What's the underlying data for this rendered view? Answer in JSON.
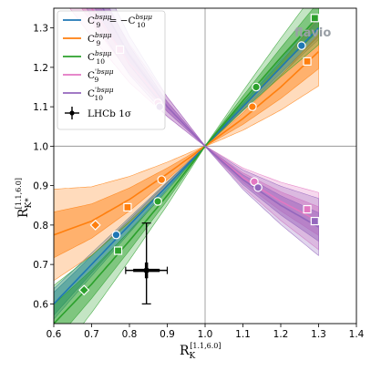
{
  "chart_data": {
    "type": "line",
    "xlabel": "R_K^{[1.1,6.0]}",
    "ylabel": "R_K*^{[1.1,6.0]}",
    "xlim": [
      0.6,
      1.4
    ],
    "ylim": [
      0.55,
      1.35
    ],
    "xticks": [
      "0.6",
      "0.7",
      "0.8",
      "0.9",
      "1.0",
      "1.1",
      "1.2",
      "1.3",
      "1.4"
    ],
    "yticks": [
      "0.6",
      "0.7",
      "0.8",
      "0.9",
      "1.0",
      "1.1",
      "1.2",
      "1.3"
    ],
    "xtick_values": [
      0.6,
      0.7,
      0.8,
      0.9,
      1.0,
      1.1,
      1.2,
      1.3,
      1.4
    ],
    "ytick_values": [
      0.6,
      0.7,
      0.8,
      0.9,
      1.0,
      1.1,
      1.2,
      1.3
    ],
    "reference_lines": {
      "x": 1.0,
      "y": 1.0
    },
    "brand_label": "flavio",
    "legend_position": "top-left",
    "series": [
      {
        "name": "C9^{bsμμ} = −C10^{bsμμ}",
        "name_main": "C",
        "name_sup": "bsμμ",
        "name_sub": "9",
        "name_mid": " = −C",
        "name_sup2": "bsμμ",
        "name_sub2": "10",
        "color": "#1f77b4",
        "band_color": "#1f77b4",
        "x": [
          0.6,
          0.7,
          0.8,
          0.9,
          1.0,
          1.1,
          1.2,
          1.3
        ],
        "y": [
          0.6,
          0.7,
          0.8,
          0.9,
          1.0,
          1.1,
          1.2,
          1.3
        ],
        "band_widths": [
          0.02,
          0.015
        ],
        "markers": [
          {
            "shape": "circle",
            "x": 0.765,
            "y": 0.775
          },
          {
            "shape": "circle",
            "x": 1.255,
            "y": 1.255
          }
        ]
      },
      {
        "name": "C9^{bsμμ}",
        "name_main": "C",
        "name_sup": "bsμμ",
        "name_sub": "9",
        "color": "#ff7f0e",
        "band_color": "#ff7f0e",
        "x": [
          0.6,
          0.7,
          0.8,
          0.9,
          1.0,
          1.1,
          1.2,
          1.3
        ],
        "y": [
          0.775,
          0.81,
          0.865,
          0.93,
          1.0,
          1.07,
          1.15,
          1.24
        ],
        "band_widths": [
          0.06,
          0.03
        ],
        "markers": [
          {
            "shape": "diamond",
            "x": 0.71,
            "y": 0.8
          },
          {
            "shape": "square",
            "x": 0.795,
            "y": 0.845
          },
          {
            "shape": "circle",
            "x": 0.885,
            "y": 0.915
          },
          {
            "shape": "circle",
            "x": 1.125,
            "y": 1.1
          },
          {
            "shape": "square",
            "x": 1.27,
            "y": 1.215
          }
        ]
      },
      {
        "name": "C10^{bsμμ}",
        "name_main": "C",
        "name_sup": "bsμμ",
        "name_sub": "10",
        "color": "#2ca02c",
        "band_color": "#2ca02c",
        "x": [
          0.6,
          0.7,
          0.8,
          0.9,
          1.0,
          1.1,
          1.2,
          1.3
        ],
        "y": [
          0.55,
          0.65,
          0.76,
          0.875,
          1.0,
          1.115,
          1.225,
          1.33
        ],
        "band_widths": [
          0.05,
          0.025
        ],
        "markers": [
          {
            "shape": "diamond",
            "x": 0.68,
            "y": 0.635
          },
          {
            "shape": "square",
            "x": 0.77,
            "y": 0.735
          },
          {
            "shape": "circle",
            "x": 0.875,
            "y": 0.86
          },
          {
            "shape": "circle",
            "x": 1.135,
            "y": 1.15
          },
          {
            "shape": "square",
            "x": 1.29,
            "y": 1.325
          }
        ]
      },
      {
        "name": "C'9^{bsμμ}",
        "name_main": "C",
        "name_sup": "'bsμμ",
        "name_sub": "9",
        "color": "#e377c2",
        "band_color": "#e377c2",
        "x": [
          0.6,
          0.7,
          0.8,
          0.9,
          1.0,
          1.1,
          1.2,
          1.3
        ],
        "y": [
          1.5,
          1.35,
          1.21,
          1.1,
          1.0,
          0.92,
          0.86,
          0.81
        ],
        "band_widths": [
          0.05,
          0.025
        ],
        "markers": [
          {
            "shape": "square",
            "x": 0.775,
            "y": 1.245
          },
          {
            "shape": "circle",
            "x": 0.875,
            "y": 1.11
          },
          {
            "shape": "circle",
            "x": 1.13,
            "y": 0.91
          },
          {
            "shape": "square",
            "x": 1.27,
            "y": 0.84
          }
        ]
      },
      {
        "name": "C'10^{bsμμ}",
        "name_main": "C",
        "name_sup": "'bsμμ",
        "name_sub": "10",
        "color": "#9467bd",
        "band_color": "#9467bd",
        "x": [
          0.6,
          0.7,
          0.8,
          0.9,
          1.0,
          1.1,
          1.2,
          1.3
        ],
        "y": [
          1.6,
          1.4,
          1.23,
          1.1,
          1.0,
          0.915,
          0.85,
          0.795
        ],
        "band_widths": [
          0.05,
          0.025
        ],
        "markers": [
          {
            "shape": "circle",
            "x": 0.88,
            "y": 1.1
          },
          {
            "shape": "circle",
            "x": 1.14,
            "y": 0.895
          },
          {
            "shape": "square",
            "x": 1.29,
            "y": 0.81
          }
        ]
      }
    ],
    "measurement": {
      "name": "LHCb 1σ",
      "x": 0.845,
      "y": 0.685,
      "x_err_stat": 0.035,
      "x_err_tot": 0.055,
      "y_err_stat": 0.02,
      "y_err_low": 0.085,
      "y_err_high": 0.12,
      "color": "#000000"
    }
  }
}
